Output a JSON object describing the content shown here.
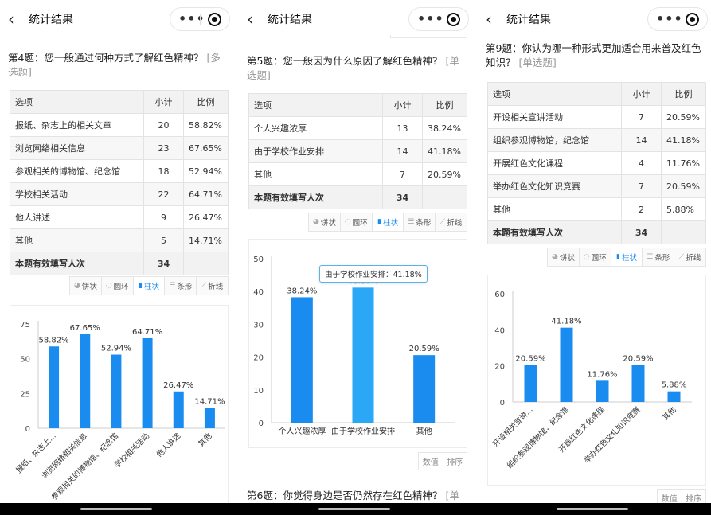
{
  "header": {
    "title": "统计结果",
    "more_icon": "more-dots-icon",
    "record_icon": "record-icon",
    "back_icon": "chevron-left-icon"
  },
  "colors": {
    "bar": "#1a8cf0",
    "bar_highlight": "#2aa8f5"
  },
  "table_headers": {
    "option": "选项",
    "count": "小计",
    "ratio": "比例"
  },
  "chart_types": [
    {
      "label": "饼状",
      "icon": "pie-icon"
    },
    {
      "label": "圆环",
      "icon": "ring-icon"
    },
    {
      "label": "柱状",
      "icon": "bar-icon",
      "active": true
    },
    {
      "label": "条形",
      "icon": "hbar-icon"
    },
    {
      "label": "折线",
      "icon": "line-icon"
    }
  ],
  "sort_buttons": [
    "数值",
    "排序"
  ],
  "panels": [
    {
      "question": "第4题：您一般通过何种方式了解红色精神？",
      "tag": "[多选题]",
      "rows": [
        [
          "报纸、杂志上的相关文章",
          "20",
          "58.82%"
        ],
        [
          "浏览网络相关信息",
          "23",
          "67.65%"
        ],
        [
          "参观相关的博物馆、纪念馆",
          "18",
          "52.94%"
        ],
        [
          "学校相关活动",
          "22",
          "64.71%"
        ],
        [
          "他人讲述",
          "9",
          "26.47%"
        ],
        [
          "其他",
          "5",
          "14.71%"
        ]
      ],
      "total": {
        "label": "本题有效填写人次",
        "value": "34"
      },
      "chart_data": {
        "type": "bar",
        "categories": [
          "报纸、杂志上...",
          "浏览网络相关信息",
          "参观相关的博物馆、纪念馆",
          "学校相关活动",
          "他人讲述",
          "其他"
        ],
        "values": [
          58.82,
          67.65,
          52.94,
          64.71,
          26.47,
          14.71
        ],
        "labels": [
          "58.82%",
          "67.65%",
          "52.94%",
          "64.71%",
          "26.47%",
          "14.71%"
        ],
        "yticks": [
          "0",
          "25",
          "50",
          "75"
        ],
        "ylim": [
          0,
          75
        ]
      }
    },
    {
      "question": "第5题：您一般因为什么原因了解红色精神？",
      "tag": "[单选题]",
      "rows": [
        [
          "个人兴趣浓厚",
          "13",
          "38.24%"
        ],
        [
          "由于学校作业安排",
          "14",
          "41.18%"
        ],
        [
          "其他",
          "7",
          "20.59%"
        ]
      ],
      "total": {
        "label": "本题有效填写人次",
        "value": "34"
      },
      "chart_data": {
        "type": "bar",
        "categories": [
          "个人兴趣浓厚",
          "由于学校作业安排",
          "其他"
        ],
        "values": [
          38.24,
          41.18,
          20.59
        ],
        "labels": [
          "38.24%",
          "41.18%",
          "20.59%"
        ],
        "yticks": [
          "0",
          "10",
          "20",
          "30",
          "40",
          "50"
        ],
        "ylim": [
          0,
          50
        ],
        "highlight": 1,
        "tooltip": "由于学校作业安排：41.18%"
      },
      "next_question": "第6题：你觉得身边是否仍然存在红色精神？",
      "next_tag": "[单"
    },
    {
      "question": "第9题：你认为哪一种形式更加适合用来普及红色知识？",
      "tag": "[单选题]",
      "rows": [
        [
          "开设相关宣讲活动",
          "7",
          "20.59%"
        ],
        [
          "组织参观博物馆，纪念馆",
          "14",
          "41.18%"
        ],
        [
          "开展红色文化课程",
          "4",
          "11.76%"
        ],
        [
          "举办红色文化知识竞赛",
          "7",
          "20.59%"
        ],
        [
          "其他",
          "2",
          "5.88%"
        ]
      ],
      "total": {
        "label": "本题有效填写人次",
        "value": "34"
      },
      "chart_data": {
        "type": "bar",
        "categories": [
          "开设相关宣讲...",
          "组织参观博物馆，纪念馆",
          "开展红色文化课程",
          "举办红色文化知识竞赛",
          "其他"
        ],
        "values": [
          20.59,
          41.18,
          11.76,
          20.59,
          5.88
        ],
        "labels": [
          "20.59%",
          "41.18%",
          "11.76%",
          "20.59%",
          "5.88%"
        ],
        "yticks": [
          "0",
          "20",
          "40",
          "60"
        ],
        "ylim": [
          0,
          60
        ]
      }
    }
  ]
}
